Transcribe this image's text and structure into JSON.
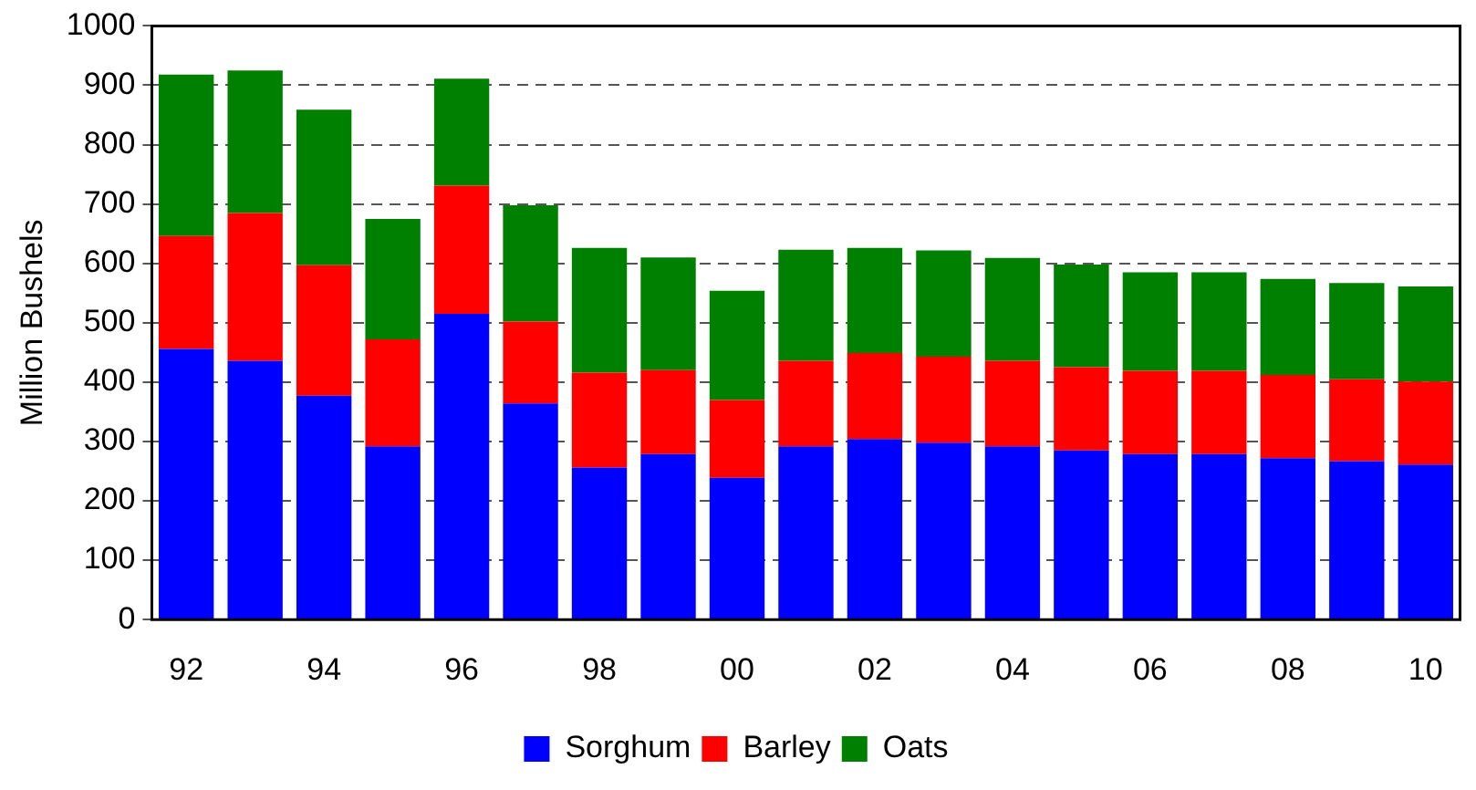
{
  "chart_data": {
    "type": "bar",
    "stacked": true,
    "ylabel": "Million Bushels",
    "categories": [
      "92",
      null,
      "94",
      null,
      "96",
      null,
      "98",
      null,
      "00",
      null,
      "02",
      null,
      "04",
      null,
      "06",
      null,
      "08",
      null,
      "10"
    ],
    "series": [
      {
        "name": "Sorghum",
        "color": "#0000ff",
        "values": [
          456,
          436,
          377,
          292,
          515,
          364,
          256,
          279,
          239,
          292,
          304,
          298,
          292,
          285,
          279,
          279,
          272,
          267,
          261
        ]
      },
      {
        "name": "Barley",
        "color": "#ff0000",
        "values": [
          190,
          249,
          220,
          180,
          216,
          138,
          160,
          141,
          131,
          144,
          145,
          145,
          144,
          140,
          140,
          140,
          140,
          138,
          140
        ]
      },
      {
        "name": "Oats",
        "color": "#008000",
        "values": [
          272,
          240,
          262,
          203,
          180,
          196,
          210,
          190,
          184,
          187,
          177,
          179,
          173,
          173,
          166,
          166,
          162,
          162,
          160
        ]
      }
    ],
    "ylim": [
      0,
      1000
    ],
    "yticks": [
      0,
      100,
      200,
      300,
      400,
      500,
      600,
      700,
      800,
      900,
      1000
    ],
    "grid": "y",
    "legend": "bottom"
  }
}
